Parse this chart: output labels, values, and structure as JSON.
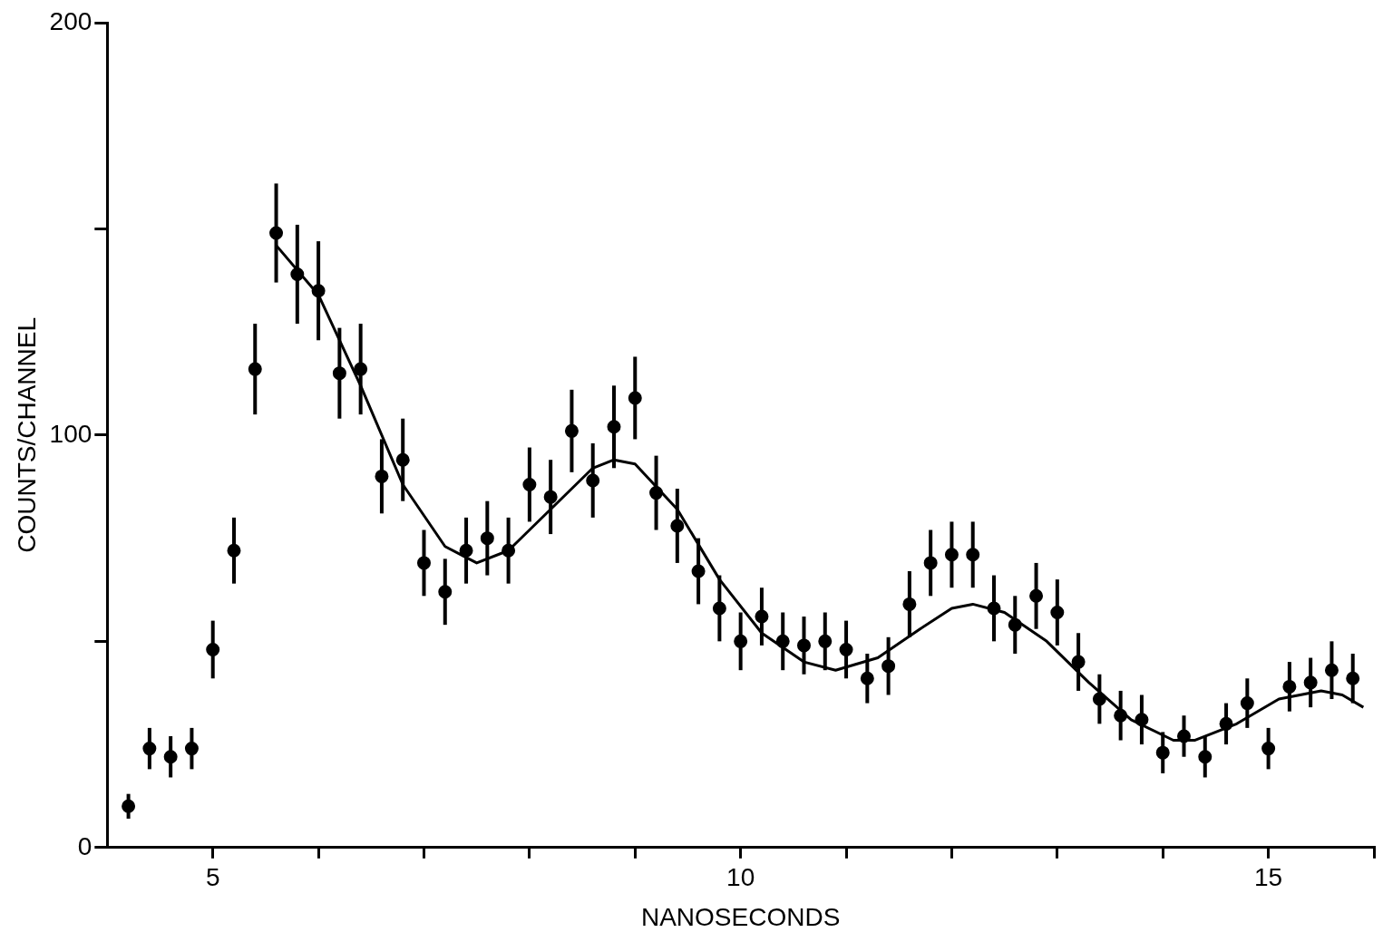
{
  "chart_data": {
    "type": "scatter",
    "xlabel": "NANOSECONDS",
    "ylabel": "COUNTS/CHANNEL",
    "xlim": [
      4,
      16
    ],
    "ylim": [
      0,
      200
    ],
    "xticks": [
      5,
      {
        "value": 6,
        "label": null
      },
      {
        "value": 7,
        "label": null
      },
      {
        "value": 8,
        "label": null
      },
      {
        "value": 9,
        "label": null
      },
      10,
      {
        "value": 11,
        "label": null
      },
      {
        "value": 12,
        "label": null
      },
      {
        "value": 13,
        "label": null
      },
      {
        "value": 14,
        "label": null
      },
      15,
      {
        "value": 16,
        "label": null
      }
    ],
    "yticks": [
      0,
      {
        "value": 50,
        "label": null
      },
      100,
      {
        "value": 150,
        "label": null
      },
      200
    ],
    "grid": false,
    "legend": false,
    "series": [
      {
        "color": "#000000",
        "marker": "circle",
        "x": [
          4.2,
          4.4,
          4.6,
          4.8,
          5.0,
          5.2,
          5.4,
          5.6,
          5.8,
          6.0,
          6.2,
          6.4,
          6.6,
          6.8,
          7.0,
          7.2,
          7.4,
          7.6,
          7.8,
          8.0,
          8.2,
          8.4,
          8.6,
          8.8,
          9.0,
          9.2,
          9.4,
          9.6,
          9.8,
          10.0,
          10.2,
          10.4,
          10.6,
          10.8,
          11.0,
          11.2,
          11.4,
          11.6,
          11.8,
          12.0,
          12.2,
          12.4,
          12.6,
          12.8,
          13.0,
          13.2,
          13.4,
          13.6,
          13.8,
          14.0,
          14.2,
          14.4,
          14.6,
          14.8,
          15.0,
          15.2,
          15.4,
          15.6,
          15.8
        ],
        "values": [
          10,
          24,
          22,
          24,
          48,
          72,
          116,
          149,
          139,
          135,
          115,
          116,
          90,
          94,
          69,
          62,
          72,
          75,
          72,
          88,
          85,
          101,
          89,
          102,
          109,
          86,
          78,
          67,
          58,
          50,
          56,
          50,
          49,
          50,
          48,
          41,
          44,
          59,
          69,
          71,
          71,
          58,
          54,
          61,
          57,
          45,
          36,
          32,
          31,
          23,
          27,
          22,
          30,
          35,
          24,
          39,
          40,
          43,
          41
        ],
        "errors": [
          3,
          5,
          5,
          5,
          7,
          8,
          11,
          12,
          12,
          12,
          11,
          11,
          9,
          10,
          8,
          8,
          8,
          9,
          8,
          9,
          9,
          10,
          9,
          10,
          10,
          9,
          9,
          8,
          8,
          7,
          7,
          7,
          7,
          7,
          7,
          6,
          7,
          8,
          8,
          8,
          8,
          8,
          7,
          8,
          8,
          7,
          6,
          6,
          6,
          5,
          5,
          5,
          5,
          6,
          5,
          6,
          6,
          7,
          6
        ]
      },
      {
        "type": "line",
        "color": "#000000",
        "marker": "none",
        "x": [
          5.6,
          6.0,
          6.4,
          6.8,
          7.2,
          7.5,
          7.8,
          8.2,
          8.6,
          8.8,
          9.0,
          9.4,
          9.8,
          10.2,
          10.6,
          10.9,
          11.3,
          11.7,
          12.0,
          12.2,
          12.5,
          12.9,
          13.3,
          13.7,
          14.1,
          14.3,
          14.7,
          15.1,
          15.5,
          15.7,
          15.9
        ],
        "values": [
          146,
          134,
          112,
          88,
          73,
          69,
          72,
          82,
          92,
          94,
          93,
          82,
          65,
          52,
          45,
          43,
          46,
          53,
          58,
          59,
          57,
          50,
          40,
          31,
          26,
          26,
          30,
          36,
          38,
          37,
          34
        ]
      }
    ]
  }
}
